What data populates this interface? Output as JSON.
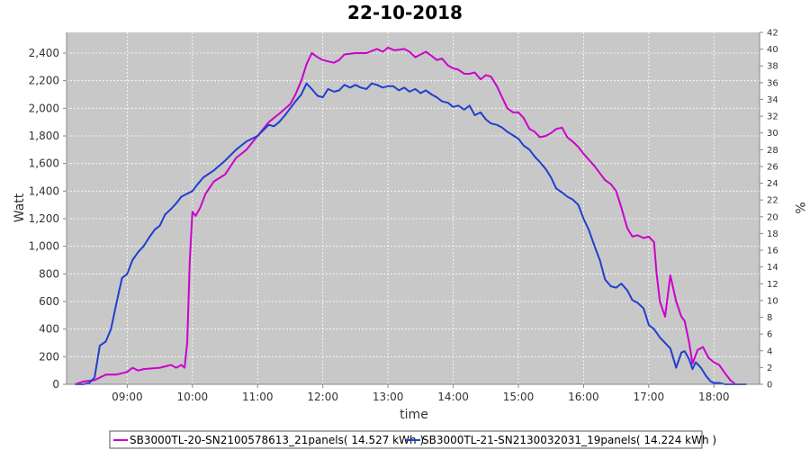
{
  "chart_data": {
    "type": "line",
    "title": "22-10-2018",
    "xlabel": "time",
    "ylabel": "Watt",
    "y2label": "%",
    "xlim": [
      8.07,
      18.7
    ],
    "ylim": [
      0,
      2550
    ],
    "y2lim": [
      0,
      42
    ],
    "x_ticks": [
      9,
      10,
      11,
      12,
      13,
      14,
      15,
      16,
      17,
      18
    ],
    "x_tick_labels": [
      "09:00",
      "10:00",
      "11:00",
      "12:00",
      "13:00",
      "14:00",
      "15:00",
      "16:00",
      "17:00",
      "18:00"
    ],
    "y_ticks": [
      0,
      200,
      400,
      600,
      800,
      1000,
      1200,
      1400,
      1600,
      1800,
      2000,
      2200,
      2400
    ],
    "y_tick_labels": [
      "0",
      "200",
      "400",
      "600",
      "800",
      "1,000",
      "1,200",
      "1,400",
      "1,600",
      "1,800",
      "2,000",
      "2,200",
      "2,400"
    ],
    "y2_ticks": [
      0,
      2,
      4,
      6,
      8,
      10,
      12,
      14,
      16,
      18,
      20,
      22,
      24,
      26,
      28,
      30,
      32,
      34,
      36,
      38,
      40,
      42
    ],
    "y2_tick_labels": [
      "0",
      "2",
      "4",
      "6",
      "8",
      "10",
      "12",
      "14",
      "16",
      "18",
      "20",
      "22",
      "24",
      "26",
      "28",
      "30",
      "32",
      "34",
      "36",
      "38",
      "40",
      "42"
    ],
    "grid": true,
    "legend_position": "bottom",
    "series": [
      {
        "name": "SB3000TL-20-SN2100578613_21panels( 14.527 kWh )",
        "color": "#cc00cc",
        "x": [
          8.2,
          8.33,
          8.5,
          8.67,
          8.83,
          9.0,
          9.08,
          9.17,
          9.25,
          9.5,
          9.67,
          9.75,
          9.83,
          9.88,
          9.92,
          9.96,
          10.0,
          10.05,
          10.12,
          10.2,
          10.33,
          10.5,
          10.67,
          10.83,
          11.0,
          11.17,
          11.33,
          11.5,
          11.58,
          11.67,
          11.75,
          11.83,
          11.92,
          12.0,
          12.08,
          12.17,
          12.25,
          12.33,
          12.5,
          12.67,
          12.83,
          12.92,
          13.0,
          13.1,
          13.25,
          13.33,
          13.42,
          13.5,
          13.58,
          13.67,
          13.75,
          13.83,
          13.92,
          14.0,
          14.08,
          14.17,
          14.25,
          14.33,
          14.42,
          14.5,
          14.58,
          14.67,
          14.75,
          14.83,
          14.92,
          15.0,
          15.08,
          15.17,
          15.25,
          15.33,
          15.42,
          15.5,
          15.58,
          15.67,
          15.75,
          15.83,
          15.92,
          16.0,
          16.17,
          16.33,
          16.42,
          16.5,
          16.58,
          16.67,
          16.75,
          16.83,
          16.92,
          17.0,
          17.08,
          17.12,
          17.17,
          17.25,
          17.33,
          17.42,
          17.5,
          17.55,
          17.62,
          17.67,
          17.75,
          17.83,
          17.92,
          18.0,
          18.08,
          18.17,
          18.25,
          18.33,
          18.42
        ],
        "y": [
          0,
          20,
          30,
          70,
          70,
          90,
          120,
          100,
          110,
          120,
          140,
          120,
          140,
          120,
          300,
          900,
          1250,
          1220,
          1280,
          1380,
          1470,
          1520,
          1640,
          1700,
          1800,
          1900,
          1960,
          2030,
          2100,
          2200,
          2320,
          2400,
          2370,
          2350,
          2340,
          2330,
          2350,
          2390,
          2400,
          2400,
          2430,
          2410,
          2440,
          2420,
          2430,
          2410,
          2370,
          2390,
          2410,
          2380,
          2350,
          2360,
          2310,
          2290,
          2280,
          2250,
          2250,
          2260,
          2210,
          2240,
          2230,
          2160,
          2080,
          2000,
          1970,
          1970,
          1930,
          1850,
          1830,
          1790,
          1800,
          1820,
          1850,
          1860,
          1790,
          1760,
          1720,
          1670,
          1580,
          1480,
          1450,
          1400,
          1280,
          1130,
          1070,
          1080,
          1060,
          1070,
          1030,
          800,
          600,
          490,
          790,
          600,
          490,
          460,
          300,
          150,
          250,
          270,
          190,
          160,
          140,
          80,
          30,
          0,
          0
        ]
      },
      {
        "name": "SB3000TL-21-SN2130032031_19panels( 14.224 kWh )",
        "color": "#1f3fd0",
        "x": [
          8.2,
          8.33,
          8.42,
          8.5,
          8.58,
          8.67,
          8.75,
          8.83,
          8.92,
          9.0,
          9.08,
          9.17,
          9.25,
          9.33,
          9.42,
          9.5,
          9.58,
          9.67,
          9.75,
          9.83,
          10.0,
          10.08,
          10.17,
          10.33,
          10.5,
          10.67,
          10.83,
          11.0,
          11.17,
          11.25,
          11.33,
          11.42,
          11.5,
          11.58,
          11.67,
          11.75,
          11.83,
          11.92,
          12.0,
          12.08,
          12.17,
          12.25,
          12.33,
          12.42,
          12.5,
          12.58,
          12.67,
          12.75,
          12.83,
          12.92,
          13.0,
          13.08,
          13.17,
          13.25,
          13.33,
          13.42,
          13.5,
          13.58,
          13.67,
          13.75,
          13.83,
          13.92,
          14.0,
          14.08,
          14.17,
          14.25,
          14.33,
          14.42,
          14.5,
          14.58,
          14.67,
          14.75,
          14.83,
          15.0,
          15.08,
          15.17,
          15.25,
          15.33,
          15.42,
          15.5,
          15.58,
          15.67,
          15.75,
          15.83,
          15.92,
          16.0,
          16.08,
          16.17,
          16.25,
          16.33,
          16.42,
          16.5,
          16.58,
          16.67,
          16.75,
          16.83,
          16.92,
          17.0,
          17.08,
          17.17,
          17.25,
          17.33,
          17.42,
          17.5,
          17.55,
          17.62,
          17.67,
          17.72,
          17.8,
          17.88,
          17.95,
          18.0,
          18.08,
          18.17,
          18.25,
          18.33,
          18.42,
          18.5
        ],
        "y": [
          0,
          0,
          10,
          50,
          280,
          310,
          400,
          580,
          770,
          800,
          900,
          960,
          1000,
          1060,
          1120,
          1150,
          1230,
          1270,
          1310,
          1360,
          1400,
          1450,
          1500,
          1550,
          1620,
          1700,
          1760,
          1800,
          1880,
          1870,
          1900,
          1950,
          2000,
          2050,
          2100,
          2180,
          2140,
          2090,
          2080,
          2140,
          2120,
          2130,
          2170,
          2150,
          2170,
          2150,
          2140,
          2180,
          2170,
          2150,
          2160,
          2160,
          2130,
          2150,
          2120,
          2140,
          2110,
          2130,
          2100,
          2080,
          2050,
          2040,
          2010,
          2020,
          1990,
          2020,
          1950,
          1970,
          1920,
          1890,
          1880,
          1860,
          1830,
          1780,
          1730,
          1700,
          1650,
          1610,
          1560,
          1500,
          1420,
          1390,
          1360,
          1340,
          1300,
          1200,
          1120,
          1000,
          900,
          760,
          710,
          700,
          730,
          680,
          610,
          590,
          550,
          430,
          400,
          340,
          300,
          260,
          120,
          230,
          240,
          180,
          110,
          160,
          120,
          60,
          20,
          10,
          10,
          0,
          0,
          0,
          0,
          0
        ]
      }
    ]
  }
}
